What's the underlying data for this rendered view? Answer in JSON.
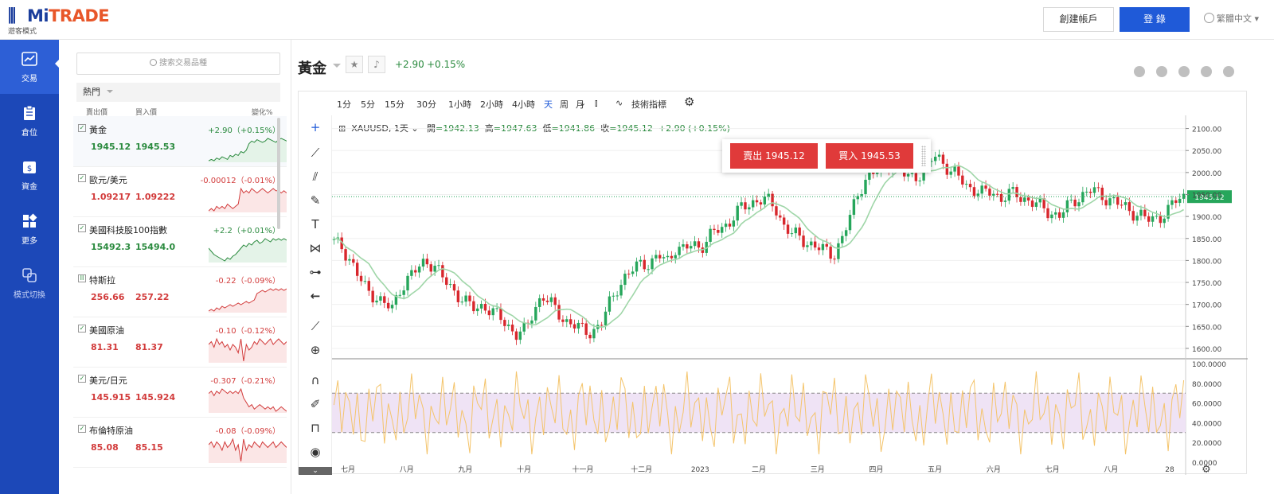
{
  "header": {
    "logo_brand_prefix": "Mi",
    "logo_brand_suffix": "TRADE",
    "logo_sub": "遊客模式",
    "create_account": "創建帳戶",
    "login": "登 錄",
    "language": "繁體中文"
  },
  "sidenav": [
    {
      "label": "交易",
      "icon": "chart-line-icon"
    },
    {
      "label": "倉位",
      "icon": "clipboard-icon"
    },
    {
      "label": "資金",
      "icon": "wallet-icon"
    },
    {
      "label": "更多",
      "icon": "grid-icon"
    },
    {
      "label": "模式切換",
      "icon": "switch-mode-icon"
    }
  ],
  "watchlist": {
    "search_placeholder": "搜索交易品種",
    "category": "熱門",
    "col_bid": "賣出價",
    "col_ask": "買入價",
    "col_change": "變化%",
    "items": [
      {
        "name": "黃金",
        "bid": "1945.12",
        "ask": "1945.53",
        "change": "+2.90（+0.15%）",
        "dir": "up",
        "check": "✓",
        "spark": [
          5,
          6,
          5,
          7,
          6,
          8,
          7,
          6,
          9,
          8,
          10,
          9,
          12,
          11,
          13,
          18,
          20,
          19,
          21,
          20,
          19,
          20,
          22,
          21,
          20,
          19,
          21,
          22,
          21,
          20
        ]
      },
      {
        "name": "歐元/美元",
        "bid": "1.09217",
        "ask": "1.09222",
        "change": "-0.00012（-0.01%）",
        "dir": "dn",
        "check": "✓",
        "spark": [
          4,
          5,
          4,
          6,
          5,
          6,
          5,
          7,
          6,
          5,
          6,
          7,
          14,
          12,
          13,
          12,
          14,
          13,
          12,
          13,
          14,
          13,
          12,
          13,
          14,
          13,
          13,
          12,
          13,
          12
        ]
      },
      {
        "name": "美國科技股100指數",
        "bid": "15492.3",
        "ask": "15494.0",
        "change": "+2.2（+0.01%）",
        "dir": "up",
        "check": "✓",
        "spark": [
          10,
          8,
          6,
          5,
          4,
          3,
          2,
          4,
          3,
          5,
          6,
          8,
          10,
          12,
          11,
          13,
          12,
          14,
          15,
          13,
          14,
          16,
          15,
          14,
          16,
          15,
          16,
          15,
          16,
          15
        ]
      },
      {
        "name": "特斯拉",
        "bid": "256.66",
        "ask": "257.22",
        "change": "-0.22（-0.09%）",
        "dir": "dn",
        "check": "II",
        "spark": [
          3,
          4,
          3,
          5,
          4,
          6,
          5,
          6,
          7,
          6,
          7,
          8,
          7,
          8,
          9,
          8,
          9,
          10,
          14,
          15,
          16,
          15,
          16,
          17,
          16,
          17,
          16,
          17,
          16,
          17
        ]
      },
      {
        "name": "美國原油",
        "bid": "81.31",
        "ask": "81.37",
        "change": "-0.10（-0.12%）",
        "dir": "dn",
        "check": "✓",
        "spark": [
          12,
          13,
          11,
          14,
          12,
          13,
          11,
          12,
          10,
          12,
          11,
          9,
          14,
          6,
          12,
          10,
          11,
          13,
          12,
          14,
          13,
          12,
          13,
          14,
          12,
          13,
          14,
          13,
          12,
          13
        ]
      },
      {
        "name": "美元/日元",
        "bid": "145.915",
        "ask": "145.924",
        "change": "-0.307（-0.21%）",
        "dir": "dn",
        "check": "✓",
        "spark": [
          16,
          17,
          15,
          17,
          16,
          18,
          17,
          16,
          17,
          16,
          17,
          16,
          18,
          14,
          12,
          10,
          11,
          9,
          10,
          11,
          10,
          9,
          10,
          9,
          10,
          8,
          9,
          10,
          9,
          8
        ]
      },
      {
        "name": "布倫特原油",
        "bid": "85.08",
        "ask": "85.15",
        "change": "-0.08（-0.09%）",
        "dir": "dn",
        "check": "✓",
        "spark": [
          12,
          13,
          11,
          13,
          12,
          10,
          13,
          11,
          12,
          14,
          10,
          12,
          6,
          14,
          10,
          12,
          11,
          13,
          12,
          11,
          13,
          12,
          11,
          12,
          13,
          11,
          12,
          13,
          12,
          11
        ]
      }
    ]
  },
  "instrument": {
    "title": "黃金",
    "change_abs": "+2.90",
    "change_pct": "+0.15%"
  },
  "toolbar": {
    "timeframes": [
      "1分",
      "5分",
      "15分",
      "30分",
      "1小時",
      "2小時",
      "4小時",
      "天",
      "周",
      "月"
    ],
    "active_timeframe": "天",
    "indicators": "技術指標"
  },
  "trade": {
    "sell": "賣出 1945.12",
    "buy": "買入 1945.53"
  },
  "legend": {
    "symbol": "XAUUSD, 1天",
    "open_label": "開",
    "open": "=1942.13",
    "high_label": "高",
    "high": "=1947.63",
    "low_label": "低",
    "low": "=1941.86",
    "close_label": "收",
    "close": "=1945.12",
    "change": "+2.90 (+0.15%)"
  },
  "chart_data": {
    "type": "candlestick",
    "series": [
      {
        "name": "XAUUSD",
        "current": 1945.12
      },
      {
        "name": "indicator",
        "band": [
          30,
          70
        ]
      }
    ],
    "price_ticks": [
      "2100.00",
      "2050.00",
      "2000.00",
      "1950.00",
      "1900.00",
      "1850.00",
      "1800.00",
      "1750.00",
      "1700.00",
      "1650.00",
      "1600.00"
    ],
    "price_range": [
      1580,
      2130
    ],
    "osc_ticks": [
      "100.0000",
      "80.0000",
      "60.0000",
      "40.0000",
      "20.0000",
      "0.0000"
    ],
    "osc_range": [
      0,
      100
    ],
    "x_labels": [
      "七月",
      "八月",
      "九月",
      "十月",
      "十一月",
      "十二月",
      "2023",
      "二月",
      "三月",
      "四月",
      "五月",
      "六月",
      "七月",
      "八月",
      "28"
    ],
    "last_price_label": "1945.12",
    "colors": {
      "up": "#26a65b",
      "down": "#d8262c",
      "ma": "#9fd6a8",
      "osc": "#f4c46b",
      "band": "#efe3f5"
    },
    "price_path": [
      1840,
      1830,
      1800,
      1760,
      1730,
      1720,
      1700,
      1690,
      1740,
      1760,
      1780,
      1800,
      1790,
      1760,
      1740,
      1720,
      1700,
      1690,
      1700,
      1680,
      1670,
      1650,
      1630,
      1640,
      1690,
      1720,
      1700,
      1680,
      1660,
      1650,
      1640,
      1640,
      1650,
      1700,
      1740,
      1760,
      1780,
      1800,
      1790,
      1810,
      1800,
      1830,
      1820,
      1840,
      1830,
      1850,
      1870,
      1880,
      1900,
      1920,
      1930,
      1940,
      1935,
      1920,
      1880,
      1860,
      1850,
      1840,
      1830,
      1820,
      1815,
      1850,
      1900,
      1960,
      1990,
      2000,
      2010,
      2025,
      2000,
      1990,
      1995,
      2000,
      2040,
      2030,
      2000,
      1990,
      1970,
      1960,
      1950,
      1960,
      1940,
      1950,
      1950,
      1940,
      1930,
      1920,
      1910,
      1900,
      1920,
      1940,
      1950,
      1960,
      1950,
      1940,
      1930,
      1920,
      1910,
      1900,
      1890,
      1900,
      1910,
      1935,
      1945
    ]
  }
}
